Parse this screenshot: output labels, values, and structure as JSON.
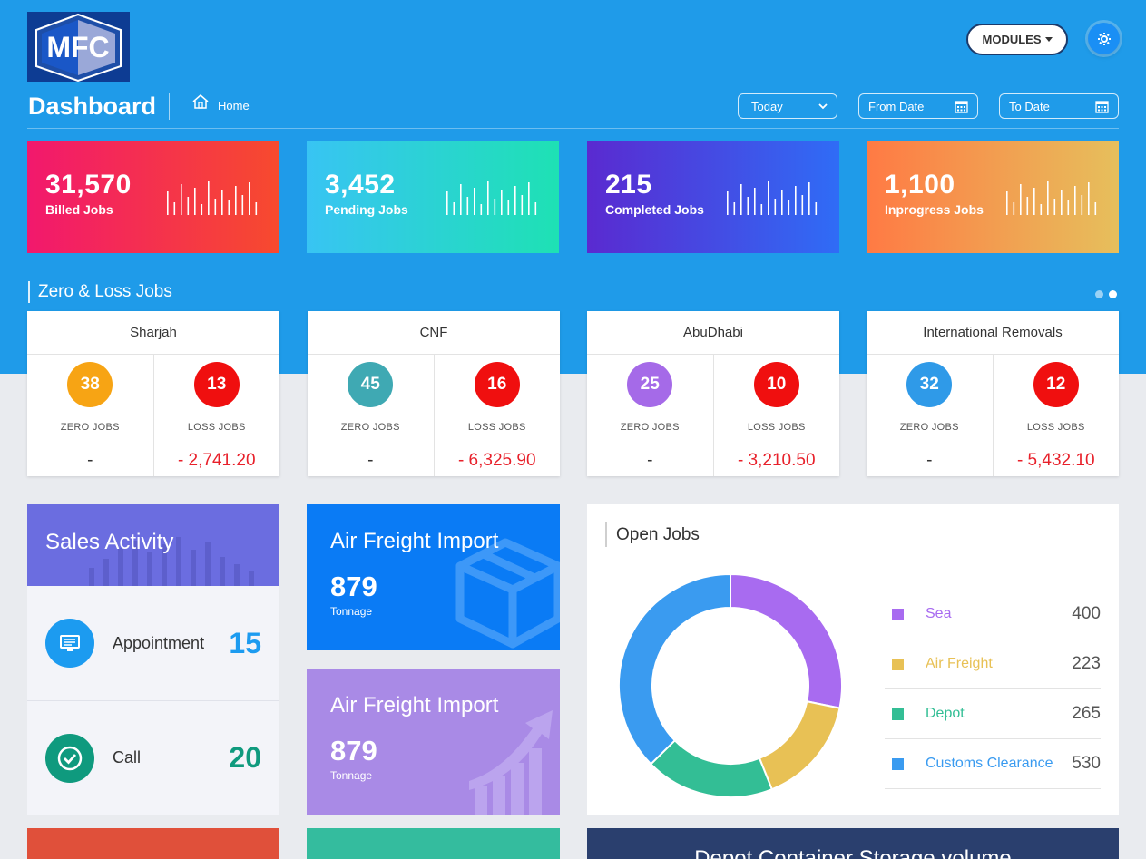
{
  "header": {
    "logo_text": "MFC",
    "modules_label": "MODULES",
    "page_title": "Dashboard",
    "breadcrumb_home": "Home",
    "period_select": "Today",
    "from_date_placeholder": "From Date",
    "to_date_placeholder": "To Date"
  },
  "stats": [
    {
      "value": "31,570",
      "label": "Billed Jobs"
    },
    {
      "value": "3,452",
      "label": "Pending Jobs"
    },
    {
      "value": "215",
      "label": "Completed Jobs"
    },
    {
      "value": "1,100",
      "label": "Inprogress Jobs"
    }
  ],
  "zero_loss": {
    "title": "Zero & Loss Jobs",
    "zero_label": "ZERO JOBS",
    "loss_label": "LOSS JOBS",
    "cards": [
      {
        "name": "Sharjah",
        "zero": "38",
        "loss": "13",
        "zero_value": "-",
        "loss_value": "- 2,741.20",
        "zero_color": "#f7a414"
      },
      {
        "name": "CNF",
        "zero": "45",
        "loss": "16",
        "zero_value": "-",
        "loss_value": "- 6,325.90",
        "zero_color": "#3fa9b3"
      },
      {
        "name": "AbuDhabi",
        "zero": "25",
        "loss": "10",
        "zero_value": "-",
        "loss_value": "- 3,210.50",
        "zero_color": "#a56ae8"
      },
      {
        "name": "International Removals",
        "zero": "32",
        "loss": "12",
        "zero_value": "-",
        "loss_value": "- 5,432.10",
        "zero_color": "#2f9ae8"
      }
    ]
  },
  "sales_activity": {
    "title": "Sales Activity",
    "items": [
      {
        "name": "Appointment",
        "value": "15"
      },
      {
        "name": "Call",
        "value": "20"
      }
    ]
  },
  "air_freight": [
    {
      "title": "Air Freight Import",
      "value": "879",
      "unit": "Tonnage"
    },
    {
      "title": "Air Freight Import",
      "value": "879",
      "unit": "Tonnage"
    }
  ],
  "open_jobs": {
    "title": "Open Jobs",
    "chart_data": {
      "type": "pie",
      "labels": [
        "Sea",
        "Air Freight",
        "Depot",
        "Customs Clearance"
      ],
      "values": [
        400,
        223,
        265,
        530
      ],
      "colors": [
        "#a86bf0",
        "#e8c155",
        "#33be95",
        "#3a9bf0"
      ],
      "display_values": [
        "400",
        "223",
        "265",
        "530"
      ]
    }
  },
  "depot": {
    "title": "Depot Container Storage volume"
  }
}
